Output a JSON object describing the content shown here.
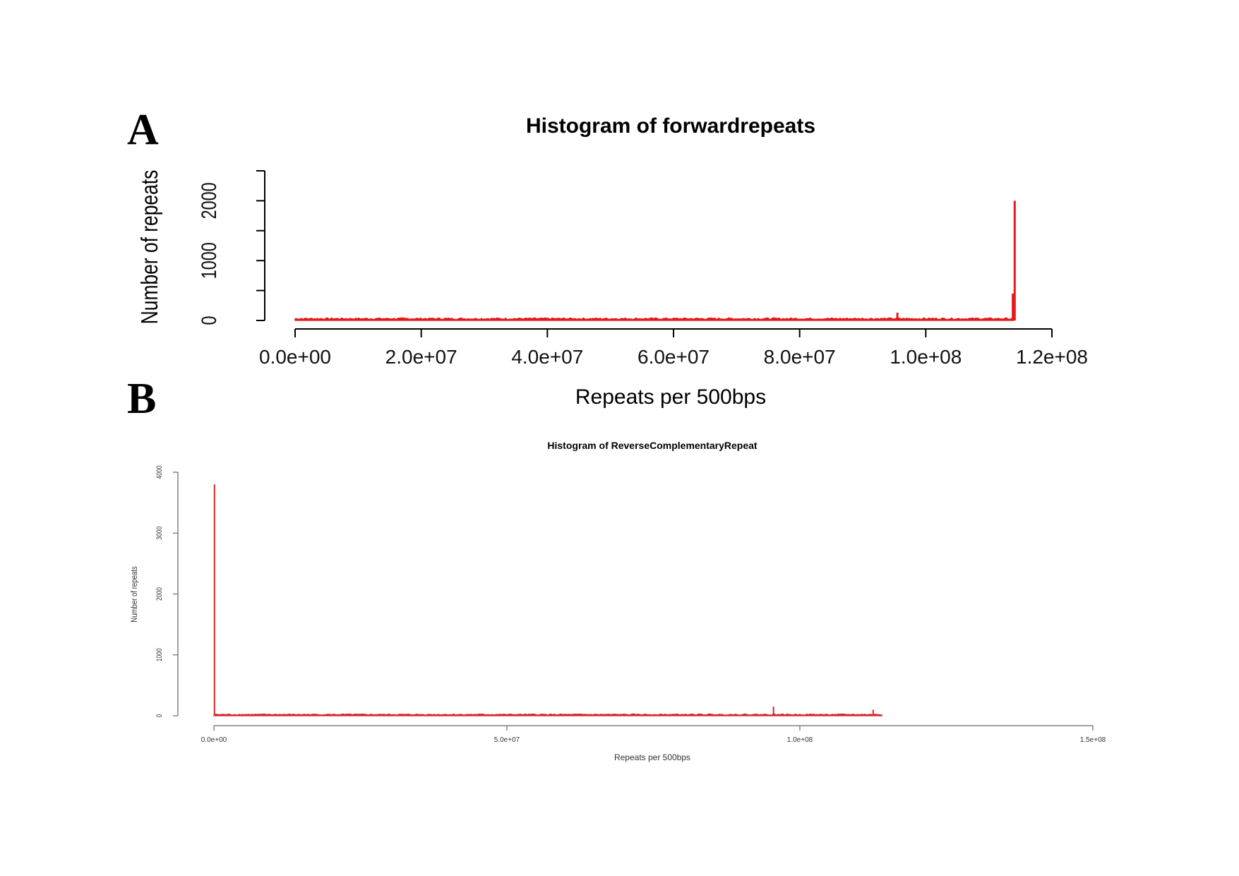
{
  "panels": [
    {
      "id": "A",
      "label": "A"
    },
    {
      "id": "B",
      "label": "B"
    }
  ],
  "chart_data": [
    {
      "type": "bar",
      "panel": "A",
      "title": "Histogram of forwardrepeats",
      "xlabel": "Repeats per 500bps",
      "ylabel": "Number of repeats",
      "xlim": [
        0,
        120000000
      ],
      "ylim": [
        0,
        2500
      ],
      "x_ticks": [
        0,
        20000000,
        40000000,
        60000000,
        80000000,
        100000000,
        120000000
      ],
      "x_tick_labels": [
        "0.0e+00",
        "2.0e+07",
        "4.0e+07",
        "6.0e+07",
        "8.0e+07",
        "1.0e+08",
        "1.2e+08"
      ],
      "y_ticks": [
        0,
        500,
        1000,
        1500,
        2000,
        2500
      ],
      "y_tick_labels": [
        "0",
        "",
        "1000",
        "",
        "2000",
        ""
      ],
      "color": "#e31a1c",
      "baseline_range": [
        0,
        114000000
      ],
      "baseline_level": 30,
      "spikes": [
        {
          "x": 95500000,
          "y": 130
        },
        {
          "x": 113800000,
          "y": 450
        },
        {
          "x": 114100000,
          "y": 2000
        }
      ],
      "grid": false,
      "legend": "none"
    },
    {
      "type": "bar",
      "panel": "B",
      "title": "Histogram of ReverseComplementaryRepeat",
      "xlabel": "Repeats per 500bps",
      "ylabel": "Number of repeats",
      "xlim": [
        0,
        150000000
      ],
      "ylim": [
        0,
        4000
      ],
      "x_ticks": [
        0,
        50000000,
        100000000,
        150000000
      ],
      "x_tick_labels": [
        "0.0e+00",
        "5.0e+07",
        "1.0e+08",
        "1.5e+08"
      ],
      "y_ticks": [
        0,
        1000,
        2000,
        3000,
        4000
      ],
      "y_tick_labels": [
        "0",
        "1000",
        "2000",
        "3000",
        "4000"
      ],
      "color": "#d62728",
      "baseline_range": [
        0,
        114000000
      ],
      "baseline_level": 20,
      "spikes": [
        {
          "x": 100000,
          "y": 3800
        },
        {
          "x": 95500000,
          "y": 150
        },
        {
          "x": 112500000,
          "y": 100
        }
      ],
      "grid": false,
      "legend": "none"
    }
  ]
}
